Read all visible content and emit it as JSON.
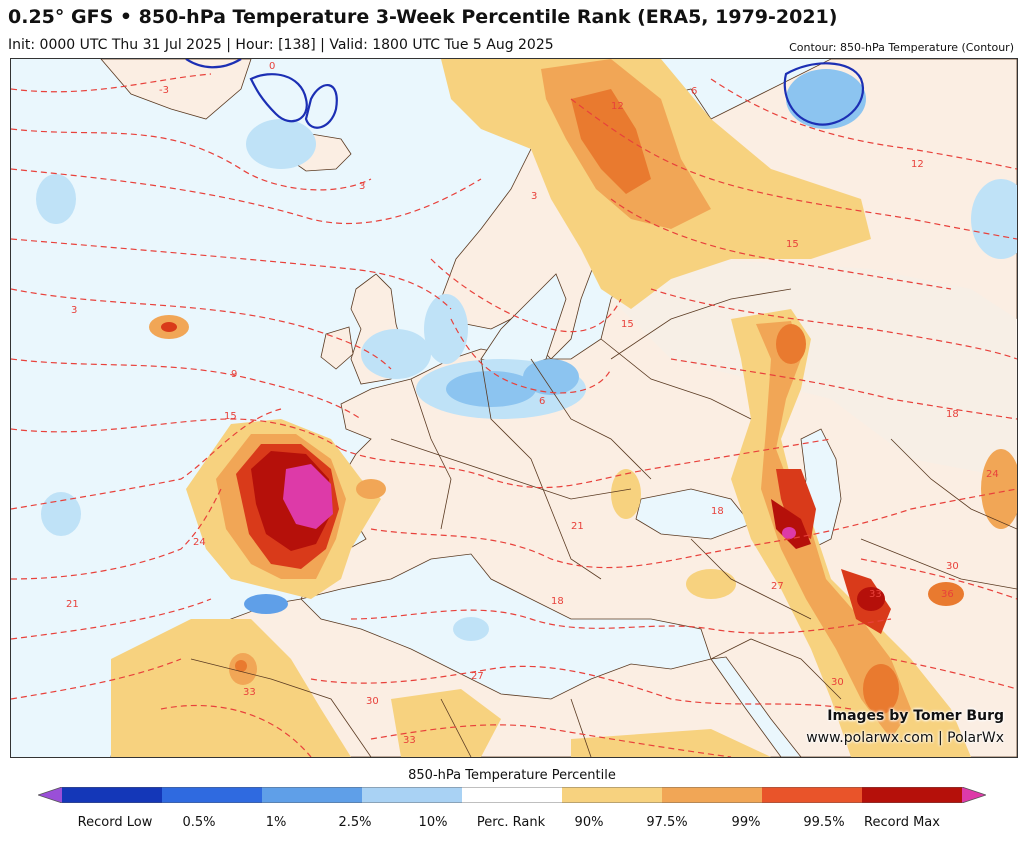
{
  "header": {
    "title": "0.25° GFS • 850-hPa Temperature 3-Week Percentile Rank (ERA5, 1979-2021)",
    "subtitle": "Init: 0000 UTC Thu 31 Jul 2025 | Hour: [138] | Valid: 1800 UTC Tue 5 Aug 2025",
    "contour_note": "Contour: 850-hPa Temperature (Contour)"
  },
  "credits": {
    "line1": "Images by Tomer Burg",
    "line2": "www.polarwx.com | PolarWx"
  },
  "map": {
    "contour_labels": [
      "-3",
      "0",
      "3",
      "3",
      "3",
      "6",
      "6",
      "9",
      "12",
      "12",
      "15",
      "15",
      "15",
      "18",
      "18",
      "18",
      "21",
      "21",
      "24",
      "24",
      "27",
      "27",
      "30",
      "30",
      "30",
      "33",
      "33",
      "33",
      "36"
    ],
    "colors": {
      "ocean": "#eaf7fd",
      "land": "#fbeee3",
      "pale_land": "#f7efe6",
      "light_blue": "#bfe2f7",
      "blue": "#8cc4f0",
      "yellow": "#f7d27f",
      "orange": "#f1a656",
      "dark_orange": "#e97a2f",
      "red": "#d93a1a",
      "dark_red": "#b5100a",
      "magenta": "#dd3aa8",
      "contour": "#e8413b",
      "cold_contour": "#1c2fb4",
      "border": "#5a3a22"
    }
  },
  "colorbar": {
    "title": "850-hPa Temperature Percentile",
    "segments": [
      {
        "color": "#9a4fd8"
      },
      {
        "color": "#1437b8"
      },
      {
        "color": "#2f6ae0"
      },
      {
        "color": "#5f9fe8"
      },
      {
        "color": "#a9d2f4"
      },
      {
        "color": "#ffffff"
      },
      {
        "color": "#f7d27f"
      },
      {
        "color": "#f1a656"
      },
      {
        "color": "#e9542a"
      },
      {
        "color": "#b5100a"
      },
      {
        "color": "#dd3aa8"
      }
    ],
    "labels": [
      "Record Low",
      "0.5%",
      "1%",
      "2.5%",
      "10%",
      "Perc. Rank",
      "90%",
      "97.5%",
      "99%",
      "99.5%",
      "Record Max"
    ]
  }
}
